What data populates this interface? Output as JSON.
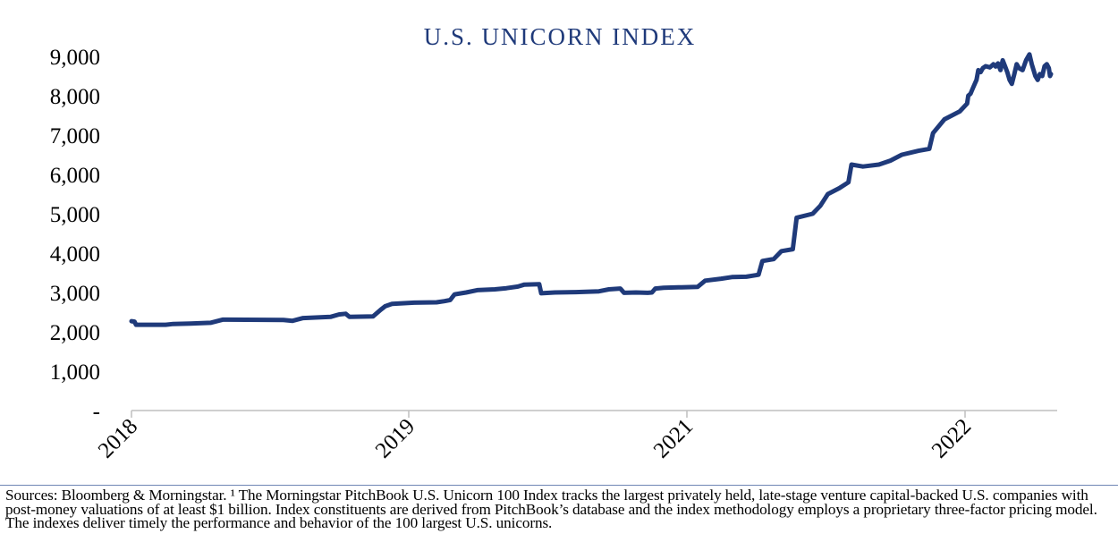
{
  "chart_data": {
    "type": "line",
    "title": "U.S. UNICORN INDEX",
    "xlabel": "",
    "ylabel": "",
    "x_tick_labels": [
      "2018",
      "2019",
      "2021",
      "2022"
    ],
    "y_tick_labels": [
      "-",
      "1,000",
      "2,000",
      "3,000",
      "4,000",
      "5,000",
      "6,000",
      "7,000",
      "8,000",
      "9,000"
    ],
    "ylim": [
      0,
      9000
    ],
    "grid": false,
    "line_color": "#1F3A7A",
    "series": [
      {
        "name": "",
        "points": [
          [
            "2018-01-01",
            2270
          ],
          [
            "2018-01-05",
            2260
          ],
          [
            "2018-01-07",
            2180
          ],
          [
            "2018-02-15",
            2180
          ],
          [
            "2018-02-25",
            2200
          ],
          [
            "2018-03-20",
            2210
          ],
          [
            "2018-04-15",
            2230
          ],
          [
            "2018-05-01",
            2310
          ],
          [
            "2018-07-20",
            2300
          ],
          [
            "2018-08-01",
            2280
          ],
          [
            "2018-08-15",
            2350
          ],
          [
            "2018-09-20",
            2380
          ],
          [
            "2018-10-01",
            2440
          ],
          [
            "2018-10-10",
            2460
          ],
          [
            "2018-10-15",
            2380
          ],
          [
            "2018-11-15",
            2390
          ],
          [
            "2018-11-25",
            2560
          ],
          [
            "2018-12-01",
            2650
          ],
          [
            "2018-12-10",
            2710
          ],
          [
            "2019-01-15",
            2740
          ],
          [
            "2019-03-15",
            2750
          ],
          [
            "2019-04-05",
            2780
          ],
          [
            "2019-04-20",
            2810
          ],
          [
            "2019-05-01",
            2950
          ],
          [
            "2019-06-01",
            3000
          ],
          [
            "2019-06-30",
            3060
          ],
          [
            "2019-08-15",
            3080
          ],
          [
            "2019-09-15",
            3110
          ],
          [
            "2019-10-15",
            3150
          ],
          [
            "2019-11-01",
            3200
          ],
          [
            "2019-12-10",
            3210
          ],
          [
            "2019-12-15",
            2980
          ],
          [
            "2020-01-20",
            3000
          ],
          [
            "2020-03-15",
            3010
          ],
          [
            "2020-05-15",
            3030
          ],
          [
            "2020-06-10",
            3080
          ],
          [
            "2020-07-10",
            3100
          ],
          [
            "2020-07-20",
            2990
          ],
          [
            "2020-08-20",
            3000
          ],
          [
            "2020-09-20",
            2990
          ],
          [
            "2020-10-01",
            3000
          ],
          [
            "2020-10-10",
            3100
          ],
          [
            "2020-11-01",
            3120
          ],
          [
            "2020-12-10",
            3130
          ],
          [
            "2021-01-15",
            3140
          ],
          [
            "2021-01-25",
            3300
          ],
          [
            "2021-02-15",
            3350
          ],
          [
            "2021-03-01",
            3390
          ],
          [
            "2021-03-20",
            3400
          ],
          [
            "2021-04-05",
            3450
          ],
          [
            "2021-04-10",
            3800
          ],
          [
            "2021-04-25",
            3850
          ],
          [
            "2021-05-05",
            4050
          ],
          [
            "2021-05-20",
            4100
          ],
          [
            "2021-05-25",
            4900
          ],
          [
            "2021-06-15",
            5000
          ],
          [
            "2021-06-25",
            5200
          ],
          [
            "2021-07-05",
            5500
          ],
          [
            "2021-07-20",
            5650
          ],
          [
            "2021-08-01",
            5800
          ],
          [
            "2021-08-05",
            6250
          ],
          [
            "2021-08-20",
            6200
          ],
          [
            "2021-09-10",
            6250
          ],
          [
            "2021-09-25",
            6350
          ],
          [
            "2021-10-10",
            6500
          ],
          [
            "2021-11-01",
            6600
          ],
          [
            "2021-11-15",
            6650
          ],
          [
            "2021-11-20",
            7050
          ],
          [
            "2021-12-05",
            7400
          ],
          [
            "2021-12-25",
            7600
          ],
          [
            "2022-01-10",
            7800
          ],
          [
            "2022-01-15",
            8000
          ],
          [
            "2022-01-25",
            8050
          ],
          [
            "2022-02-05",
            8200
          ],
          [
            "2022-02-20",
            8400
          ],
          [
            "2022-02-28",
            8650
          ],
          [
            "2022-03-10",
            8600
          ],
          [
            "2022-03-20",
            8700
          ],
          [
            "2022-04-01",
            8750
          ],
          [
            "2022-04-20",
            8720
          ],
          [
            "2022-05-05",
            8800
          ],
          [
            "2022-05-15",
            8740
          ],
          [
            "2022-05-25",
            8820
          ],
          [
            "2022-06-05",
            8650
          ],
          [
            "2022-06-15",
            8900
          ],
          [
            "2022-06-25",
            8750
          ],
          [
            "2022-07-05",
            8600
          ],
          [
            "2022-07-15",
            8400
          ],
          [
            "2022-07-25",
            8300
          ],
          [
            "2022-08-05",
            8550
          ],
          [
            "2022-08-15",
            8800
          ],
          [
            "2022-08-25",
            8700
          ],
          [
            "2022-09-10",
            8650
          ],
          [
            "2022-09-25",
            8900
          ],
          [
            "2022-10-10",
            9050
          ],
          [
            "2022-10-20",
            8800
          ],
          [
            "2022-11-05",
            8500
          ],
          [
            "2022-11-15",
            8400
          ],
          [
            "2022-11-25",
            8550
          ],
          [
            "2022-12-05",
            8500
          ],
          [
            "2022-12-15",
            8750
          ],
          [
            "2022-12-25",
            8800
          ],
          [
            "2023-01-03",
            8700
          ],
          [
            "2023-01-08",
            8500
          ],
          [
            "2023-01-12",
            8550
          ]
        ]
      }
    ]
  },
  "footnote": "Sources: Bloomberg & Morningstar. ¹ The Morningstar PitchBook U.S. Unicorn 100 Index tracks the largest privately held, late-stage venture capital-backed U.S. companies with post-money valuations of at least $1 billion. Index constituents are derived from PitchBook’s database and the index methodology employs a proprietary three-factor pricing model. The indexes deliver timely the performance and behavior of the 100 largest U.S. unicorns."
}
